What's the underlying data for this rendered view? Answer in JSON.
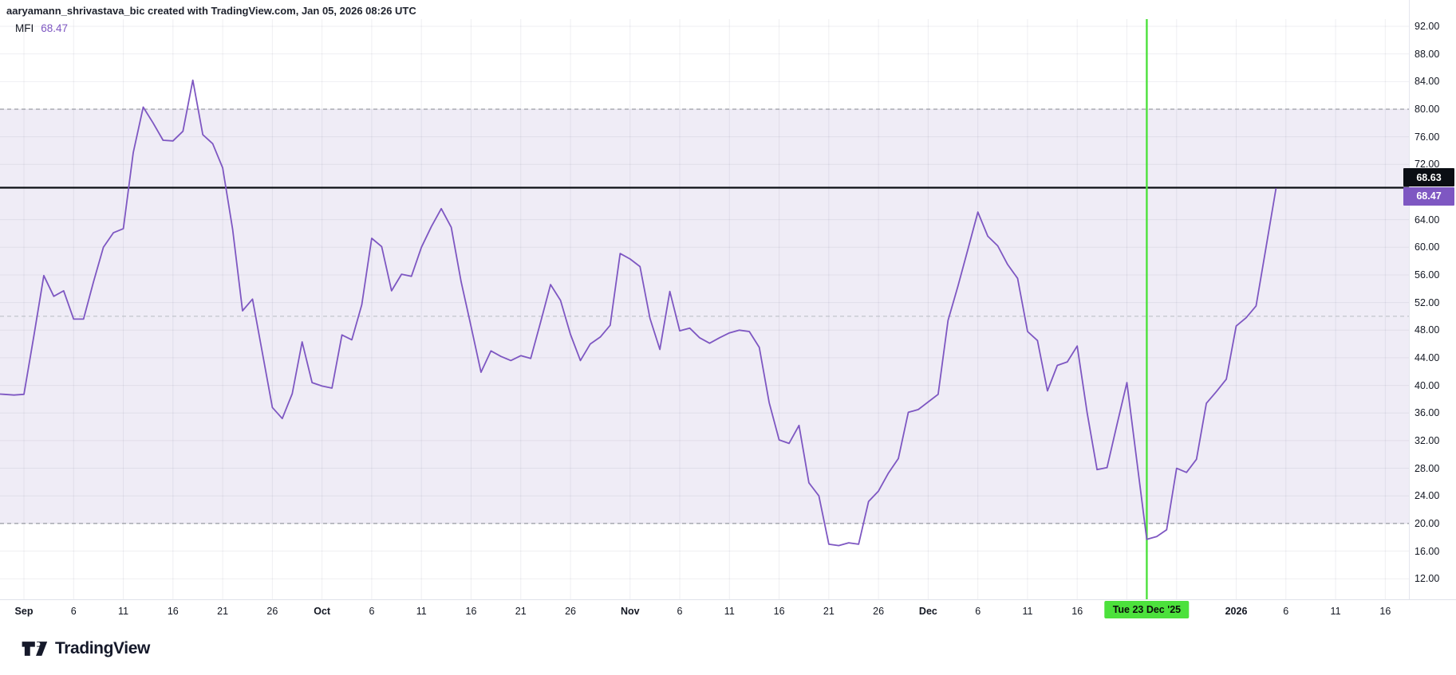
{
  "attribution": "aaryamann_shrivastava_bic created with TradingView.com, Jan 05, 2026 08:26 UTC",
  "indicator": {
    "name": "MFI",
    "value": "68.47"
  },
  "price_labels": {
    "upper": "68.63",
    "lower": "68.47"
  },
  "date_marker": {
    "label": "Tue 23 Dec '25",
    "day": 113
  },
  "logo": {
    "text": "TradingView"
  },
  "colors": {
    "line": "#7e57c2",
    "band_fill": "#efecf6",
    "grid": "rgba(95,100,125,0.10)",
    "band_dash": "#83868f",
    "middle_dash": "#b7bac2",
    "hline": "#0b0e14",
    "marker_green": "#4ce13c",
    "axis_text": "#131722"
  },
  "chart_data": {
    "type": "line",
    "title": "MFI",
    "xlabel": "",
    "ylabel": "",
    "ylim": [
      11,
      93
    ],
    "grid": true,
    "legend_position": "top-left",
    "levels": {
      "overbought": 80,
      "middle": 50,
      "oversold": 20,
      "horizontal_line": 68.63
    },
    "current_value": 68.47,
    "y_ticks": [
      "92.00",
      "88.00",
      "84.00",
      "80.00",
      "76.00",
      "72.00",
      "64.00",
      "60.00",
      "56.00",
      "52.00",
      "48.00",
      "44.00",
      "40.00",
      "36.00",
      "32.00",
      "28.00",
      "24.00",
      "20.00",
      "16.00",
      "12.00"
    ],
    "x_ticks": [
      {
        "label": "Sep",
        "day": 0,
        "major": true
      },
      {
        "label": "6",
        "day": 5,
        "major": false
      },
      {
        "label": "11",
        "day": 10,
        "major": false
      },
      {
        "label": "16",
        "day": 15,
        "major": false
      },
      {
        "label": "21",
        "day": 20,
        "major": false
      },
      {
        "label": "26",
        "day": 25,
        "major": false
      },
      {
        "label": "Oct",
        "day": 30,
        "major": true
      },
      {
        "label": "6",
        "day": 35,
        "major": false
      },
      {
        "label": "11",
        "day": 40,
        "major": false
      },
      {
        "label": "16",
        "day": 45,
        "major": false
      },
      {
        "label": "21",
        "day": 50,
        "major": false
      },
      {
        "label": "26",
        "day": 55,
        "major": false
      },
      {
        "label": "Nov",
        "day": 61,
        "major": true
      },
      {
        "label": "6",
        "day": 66,
        "major": false
      },
      {
        "label": "11",
        "day": 71,
        "major": false
      },
      {
        "label": "16",
        "day": 76,
        "major": false
      },
      {
        "label": "21",
        "day": 81,
        "major": false
      },
      {
        "label": "26",
        "day": 86,
        "major": false
      },
      {
        "label": "Dec",
        "day": 91,
        "major": true
      },
      {
        "label": "6",
        "day": 96,
        "major": false
      },
      {
        "label": "11",
        "day": 101,
        "major": false
      },
      {
        "label": "16",
        "day": 106,
        "major": false
      },
      {
        "label": "2026",
        "day": 122,
        "major": true
      },
      {
        "label": "6",
        "day": 127,
        "major": false
      },
      {
        "label": "11",
        "day": 132,
        "major": false
      },
      {
        "label": "16",
        "day": 137,
        "major": false
      }
    ],
    "grid_days": [
      0,
      5,
      10,
      15,
      20,
      25,
      30,
      35,
      40,
      45,
      50,
      55,
      61,
      66,
      71,
      76,
      81,
      86,
      91,
      96,
      101,
      106,
      111,
      116,
      122,
      127,
      132,
      137
    ],
    "series": [
      {
        "name": "MFI",
        "color": "#7e57c2",
        "first_point_day": -3,
        "points": [
          [
            "Aug 29",
            38.8
          ],
          [
            "Aug 30",
            38.7
          ],
          [
            "Aug 31",
            38.6
          ],
          [
            "Sep 1",
            38.7
          ],
          [
            "Sep 2",
            47.2
          ],
          [
            "Sep 3",
            55.9
          ],
          [
            "Sep 4",
            52.9
          ],
          [
            "Sep 5",
            53.7
          ],
          [
            "Sep 6",
            49.6
          ],
          [
            "Sep 7",
            49.6
          ],
          [
            "Sep 8",
            55.0
          ],
          [
            "Sep 9",
            60.0
          ],
          [
            "Sep 10",
            62.1
          ],
          [
            "Sep 11",
            62.7
          ],
          [
            "Sep 12",
            73.7
          ],
          [
            "Sep 13",
            80.3
          ],
          [
            "Sep 14",
            78.0
          ],
          [
            "Sep 15",
            75.5
          ],
          [
            "Sep 16",
            75.4
          ],
          [
            "Sep 17",
            76.8
          ],
          [
            "Sep 18",
            84.2
          ],
          [
            "Sep 19",
            76.3
          ],
          [
            "Sep 20",
            75.0
          ],
          [
            "Sep 21",
            71.5
          ],
          [
            "Sep 22",
            62.6
          ],
          [
            "Sep 23",
            50.8
          ],
          [
            "Sep 24",
            52.5
          ],
          [
            "Sep 25",
            44.7
          ],
          [
            "Sep 26",
            36.8
          ],
          [
            "Sep 27",
            35.2
          ],
          [
            "Sep 28",
            38.8
          ],
          [
            "Sep 29",
            46.3
          ],
          [
            "Sep 30",
            40.4
          ],
          [
            "Oct 1",
            39.9
          ],
          [
            "Oct 2",
            39.6
          ],
          [
            "Oct 3",
            47.3
          ],
          [
            "Oct 4",
            46.6
          ],
          [
            "Oct 5",
            51.7
          ],
          [
            "Oct 6",
            61.3
          ],
          [
            "Oct 7",
            60.1
          ],
          [
            "Oct 8",
            53.7
          ],
          [
            "Oct 9",
            56.1
          ],
          [
            "Oct 10",
            55.8
          ],
          [
            "Oct 11",
            60.0
          ],
          [
            "Oct 12",
            63.0
          ],
          [
            "Oct 13",
            65.6
          ],
          [
            "Oct 14",
            62.9
          ],
          [
            "Oct 15",
            55.0
          ],
          [
            "Oct 16",
            48.5
          ],
          [
            "Oct 17",
            41.9
          ],
          [
            "Oct 18",
            45.0
          ],
          [
            "Oct 19",
            44.2
          ],
          [
            "Oct 20",
            43.6
          ],
          [
            "Oct 21",
            44.3
          ],
          [
            "Oct 22",
            43.9
          ],
          [
            "Oct 23",
            49.2
          ],
          [
            "Oct 24",
            54.6
          ],
          [
            "Oct 25",
            52.3
          ],
          [
            "Oct 26",
            47.4
          ],
          [
            "Oct 27",
            43.6
          ],
          [
            "Oct 28",
            46.0
          ],
          [
            "Oct 29",
            47.0
          ],
          [
            "Oct 30",
            48.7
          ],
          [
            "Oct 31",
            59.1
          ],
          [
            "Nov 1",
            58.3
          ],
          [
            "Nov 2",
            57.2
          ],
          [
            "Nov 3",
            49.7
          ],
          [
            "Nov 4",
            45.2
          ],
          [
            "Nov 5",
            53.6
          ],
          [
            "Nov 6",
            47.9
          ],
          [
            "Nov 7",
            48.3
          ],
          [
            "Nov 8",
            46.9
          ],
          [
            "Nov 9",
            46.1
          ],
          [
            "Nov 10",
            46.9
          ],
          [
            "Nov 11",
            47.6
          ],
          [
            "Nov 12",
            48.0
          ],
          [
            "Nov 13",
            47.8
          ],
          [
            "Nov 14",
            45.5
          ],
          [
            "Nov 15",
            37.5
          ],
          [
            "Nov 16",
            32.1
          ],
          [
            "Nov 17",
            31.6
          ],
          [
            "Nov 18",
            34.2
          ],
          [
            "Nov 19",
            25.9
          ],
          [
            "Nov 20",
            24.0
          ],
          [
            "Nov 21",
            17.0
          ],
          [
            "Nov 22",
            16.8
          ],
          [
            "Nov 23",
            17.2
          ],
          [
            "Nov 24",
            17.0
          ],
          [
            "Nov 25",
            23.2
          ],
          [
            "Nov 26",
            24.7
          ],
          [
            "Nov 27",
            27.3
          ],
          [
            "Nov 28",
            29.4
          ],
          [
            "Nov 29",
            36.1
          ],
          [
            "Nov 30",
            36.5
          ],
          [
            "Dec 1",
            37.6
          ],
          [
            "Dec 2",
            38.7
          ],
          [
            "Dec 3",
            49.4
          ],
          [
            "Dec 4",
            54.4
          ],
          [
            "Dec 5",
            59.7
          ],
          [
            "Dec 6",
            65.1
          ],
          [
            "Dec 7",
            61.6
          ],
          [
            "Dec 8",
            60.2
          ],
          [
            "Dec 9",
            57.5
          ],
          [
            "Dec 10",
            55.5
          ],
          [
            "Dec 11",
            47.8
          ],
          [
            "Dec 12",
            46.5
          ],
          [
            "Dec 13",
            39.2
          ],
          [
            "Dec 14",
            42.9
          ],
          [
            "Dec 15",
            43.4
          ],
          [
            "Dec 16",
            45.7
          ],
          [
            "Dec 17",
            36.0
          ],
          [
            "Dec 18",
            27.8
          ],
          [
            "Dec 19",
            28.1
          ],
          [
            "Dec 20",
            34.3
          ],
          [
            "Dec 21",
            40.4
          ],
          [
            "Dec 22",
            29.0
          ],
          [
            "Dec 23",
            17.7
          ],
          [
            "Dec 24",
            18.1
          ],
          [
            "Dec 25",
            19.1
          ],
          [
            "Dec 26",
            28.0
          ],
          [
            "Dec 27",
            27.4
          ],
          [
            "Dec 28",
            29.3
          ],
          [
            "Dec 29",
            37.4
          ],
          [
            "Dec 30",
            39.1
          ],
          [
            "Dec 31",
            40.9
          ],
          [
            "Jan 1",
            48.6
          ],
          [
            "Jan 2",
            49.8
          ],
          [
            "Jan 3",
            51.5
          ],
          [
            "Jan 4",
            60.0
          ],
          [
            "Jan 5",
            68.47
          ]
        ]
      }
    ]
  }
}
